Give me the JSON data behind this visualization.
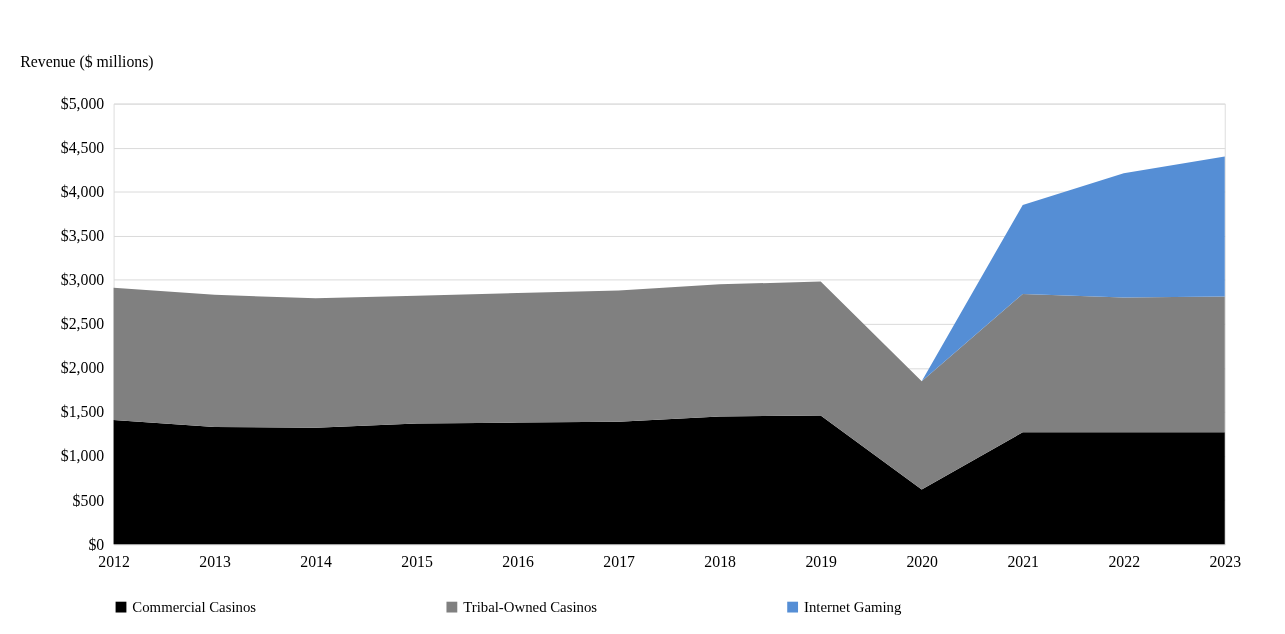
{
  "chart_data": {
    "type": "area",
    "ylabel": "Revenue ($ millions)",
    "stacked": true,
    "categories": [
      "2012",
      "2013",
      "2014",
      "2015",
      "2016",
      "2017",
      "2018",
      "2019",
      "2020",
      "2021",
      "2022",
      "2023"
    ],
    "series": [
      {
        "name": "Commercial Casinos",
        "color": "#000000",
        "values": [
          1410,
          1330,
          1320,
          1370,
          1380,
          1390,
          1450,
          1460,
          620,
          1270,
          1270,
          1270
        ]
      },
      {
        "name": "Tribal-Owned Casinos",
        "color": "#808080",
        "values": [
          1500,
          1500,
          1470,
          1450,
          1470,
          1490,
          1500,
          1520,
          1230,
          1570,
          1530,
          1540
        ]
      },
      {
        "name": "Internet Gaming",
        "color": "#558ed5",
        "values": [
          null,
          null,
          null,
          null,
          null,
          null,
          null,
          null,
          0,
          1010,
          1410,
          1590
        ]
      }
    ],
    "ylim": [
      0,
      5000
    ],
    "yticks": [
      {
        "value": 0,
        "label": "$0"
      },
      {
        "value": 500,
        "label": "$500"
      },
      {
        "value": 1000,
        "label": "$1,000"
      },
      {
        "value": 1500,
        "label": "$1,500"
      },
      {
        "value": 2000,
        "label": "$2,000"
      },
      {
        "value": 2500,
        "label": "$2,500"
      },
      {
        "value": 3000,
        "label": "$3,000"
      },
      {
        "value": 3500,
        "label": "$3,500"
      },
      {
        "value": 4000,
        "label": "$4,000"
      },
      {
        "value": 4500,
        "label": "$4,500"
      },
      {
        "value": 5000,
        "label": "$5,000"
      }
    ],
    "grid": "y",
    "legend": "bottom"
  }
}
